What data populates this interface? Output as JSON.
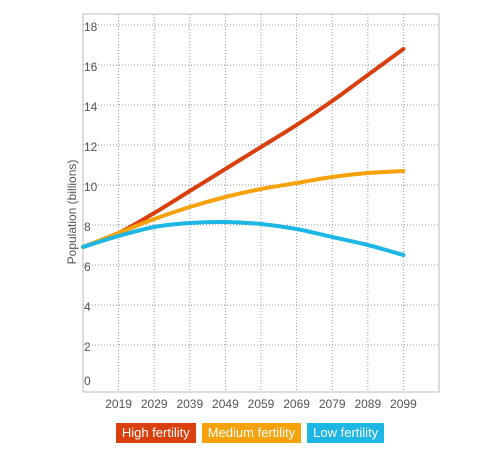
{
  "chart_data": {
    "type": "line",
    "title": "",
    "xlabel": "",
    "ylabel": "Population (billions)",
    "x": [
      2009,
      2019,
      2029,
      2039,
      2049,
      2059,
      2069,
      2079,
      2089,
      2099
    ],
    "xticks": [
      "2019",
      "2029",
      "2039",
      "2049",
      "2059",
      "2069",
      "2079",
      "2089",
      "2099"
    ],
    "yticks": [
      "0",
      "2",
      "4",
      "6",
      "8",
      "10",
      "12",
      "14",
      "16",
      "18"
    ],
    "xlim": [
      2009,
      2109
    ],
    "ylim": [
      0,
      18
    ],
    "grid": true,
    "legend_position": "bottom-center",
    "series": [
      {
        "name": "High fertility",
        "color": "#d9400e",
        "values": [
          6.9,
          7.6,
          8.6,
          9.7,
          10.8,
          11.9,
          13.0,
          14.2,
          15.5,
          16.8
        ]
      },
      {
        "name": "Medium fertility",
        "color": "#f6a20b",
        "values": [
          6.9,
          7.6,
          8.3,
          8.9,
          9.4,
          9.8,
          10.1,
          10.4,
          10.6,
          10.7
        ]
      },
      {
        "name": "Low fertility",
        "color": "#1eb6e4",
        "values": [
          6.9,
          7.45,
          7.9,
          8.1,
          8.15,
          8.05,
          7.8,
          7.4,
          7.0,
          6.5
        ]
      }
    ]
  }
}
